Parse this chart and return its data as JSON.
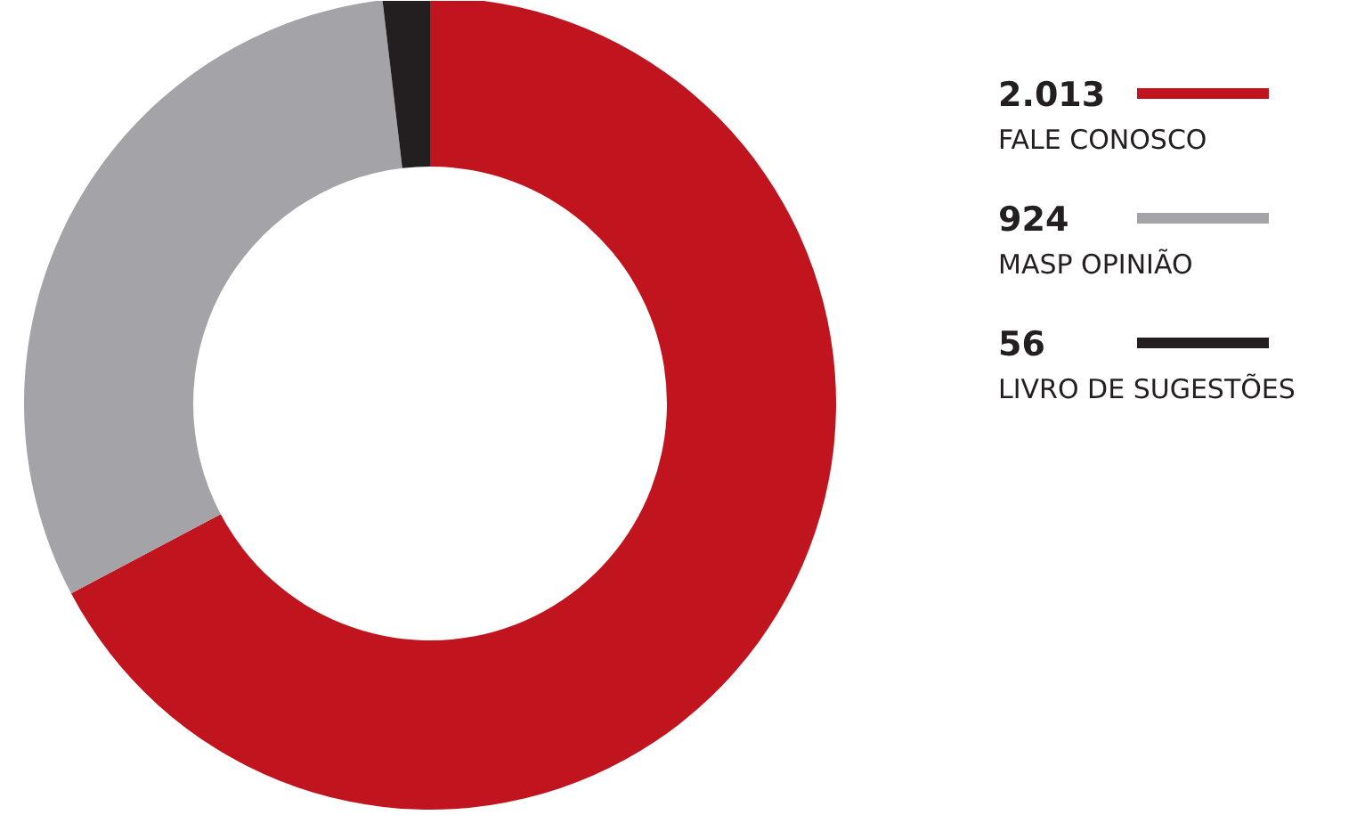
{
  "chart_data": {
    "type": "donut",
    "categories": [
      "FALE CONOSCO",
      "MASP OPINIÃO",
      "LIVRO DE SUGESTÕES"
    ],
    "values": [
      2013,
      924,
      56
    ],
    "value_labels": [
      "2.013",
      "924",
      "56"
    ],
    "colors": [
      "#c0141e",
      "#a3a3a8",
      "#231f20"
    ],
    "legend": "right"
  }
}
